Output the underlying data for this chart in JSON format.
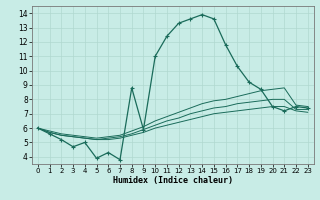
{
  "xlabel": "Humidex (Indice chaleur)",
  "xlim": [
    -0.5,
    23.5
  ],
  "ylim": [
    3.5,
    14.5
  ],
  "xticks": [
    0,
    1,
    2,
    3,
    4,
    5,
    6,
    7,
    8,
    9,
    10,
    11,
    12,
    13,
    14,
    15,
    16,
    17,
    18,
    19,
    20,
    21,
    22,
    23
  ],
  "yticks": [
    4,
    5,
    6,
    7,
    8,
    9,
    10,
    11,
    12,
    13,
    14
  ],
  "bg_color": "#c8ece6",
  "line_color": "#1a6b5a",
  "grid_color": "#b0d8d0",
  "line1_x": [
    0,
    1,
    2,
    3,
    4,
    5,
    6,
    7,
    8,
    9,
    10,
    11,
    12,
    13,
    14,
    15,
    16,
    17,
    18,
    19,
    20,
    21,
    22,
    23
  ],
  "line1_y": [
    6.0,
    5.6,
    5.2,
    4.7,
    5.0,
    3.9,
    4.3,
    3.8,
    8.8,
    5.9,
    11.0,
    12.4,
    13.3,
    13.6,
    13.9,
    13.6,
    11.8,
    10.3,
    9.2,
    8.7,
    7.5,
    7.2,
    7.5,
    7.4
  ],
  "line2_x": [
    0,
    1,
    2,
    3,
    4,
    5,
    6,
    7,
    8,
    9,
    10,
    11,
    12,
    13,
    14,
    15,
    16,
    17,
    18,
    19,
    20,
    21,
    22,
    23
  ],
  "line2_y": [
    6.0,
    5.8,
    5.6,
    5.5,
    5.4,
    5.3,
    5.4,
    5.5,
    5.8,
    6.1,
    6.5,
    6.8,
    7.1,
    7.4,
    7.7,
    7.9,
    8.0,
    8.2,
    8.4,
    8.6,
    8.7,
    8.8,
    7.6,
    7.5
  ],
  "line3_x": [
    0,
    1,
    2,
    3,
    4,
    5,
    6,
    7,
    8,
    9,
    10,
    11,
    12,
    13,
    14,
    15,
    16,
    17,
    18,
    19,
    20,
    21,
    22,
    23
  ],
  "line3_y": [
    6.0,
    5.7,
    5.5,
    5.4,
    5.3,
    5.2,
    5.3,
    5.4,
    5.6,
    5.9,
    6.2,
    6.5,
    6.7,
    7.0,
    7.2,
    7.4,
    7.5,
    7.7,
    7.8,
    7.9,
    8.0,
    8.0,
    7.3,
    7.3
  ],
  "line4_x": [
    0,
    1,
    2,
    3,
    4,
    5,
    6,
    7,
    8,
    9,
    10,
    11,
    12,
    13,
    14,
    15,
    16,
    17,
    18,
    19,
    20,
    21,
    22,
    23
  ],
  "line4_y": [
    6.0,
    5.7,
    5.5,
    5.4,
    5.3,
    5.2,
    5.2,
    5.3,
    5.5,
    5.7,
    6.0,
    6.2,
    6.4,
    6.6,
    6.8,
    7.0,
    7.1,
    7.2,
    7.3,
    7.4,
    7.5,
    7.5,
    7.2,
    7.1
  ]
}
